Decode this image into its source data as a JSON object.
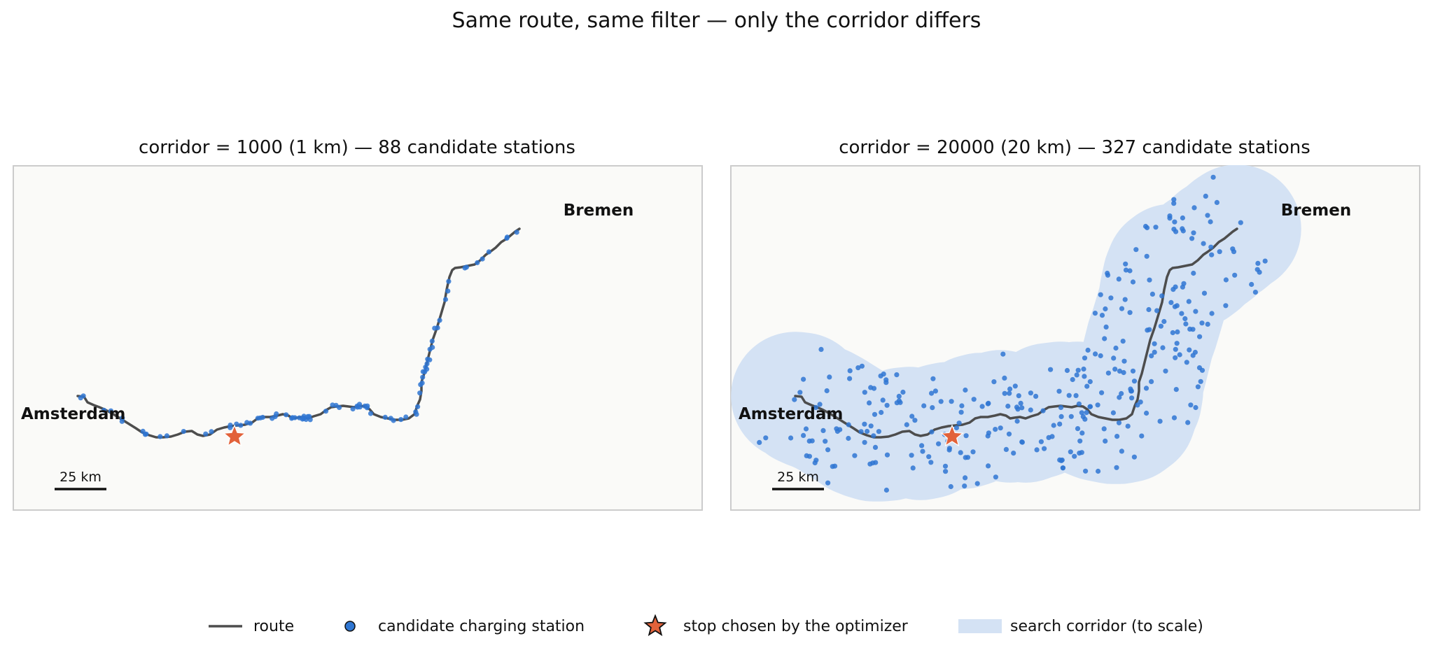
{
  "title": "Same route, same filter — only the corridor differs",
  "colors": {
    "route": "#4d4d4d",
    "station": "#2f76d2",
    "star": "#e2623a",
    "corridor": "#d4e2f4",
    "frame": "#cccccc",
    "panel_bg": "#fafaf8"
  },
  "chart_data": [
    {
      "type": "scatter",
      "title": "corridor = 1000 (1 km) — 88 candidate stations",
      "corridor_m": 1000,
      "corridor_km": 1,
      "candidate_count": 88,
      "start_label": "Amsterdam",
      "end_label": "Bremen",
      "scale_bar_label": "25 km",
      "scale_bar_km": 25,
      "chosen_stop_km_from_start": 66
    },
    {
      "type": "scatter",
      "title": "corridor = 20000 (20 km) — 327 candidate stations",
      "corridor_m": 20000,
      "corridor_km": 20,
      "candidate_count": 327,
      "start_label": "Amsterdam",
      "end_label": "Bremen",
      "scale_bar_label": "25 km",
      "scale_bar_km": 25,
      "chosen_stop_km_from_start": 66
    }
  ],
  "legend": {
    "route": "route",
    "station": "candidate charging station",
    "stop": "stop chosen by the optimizer",
    "corridor": "search corridor (to scale)"
  }
}
